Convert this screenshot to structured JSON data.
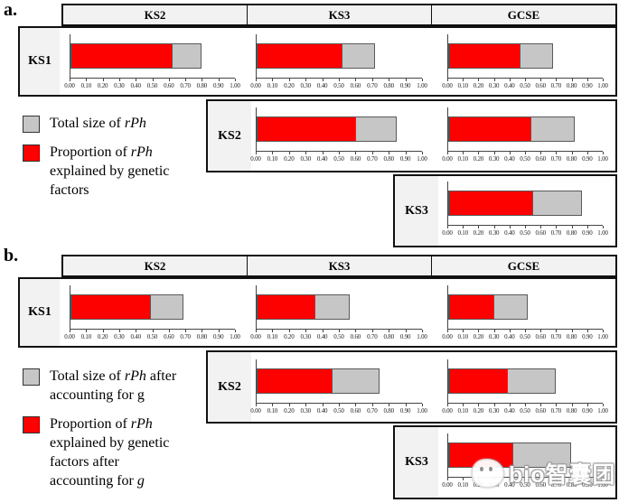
{
  "axis": {
    "tick_labels": [
      "0.00",
      "0.10",
      "0.20",
      "0.30",
      "0.40",
      "0.50",
      "0.60",
      "0.70",
      "0.80",
      "0.90",
      "1.00"
    ],
    "min": 0,
    "max": 1
  },
  "colors": {
    "red": "#fc0100",
    "gray": "#c6c6c6",
    "panel_bg": "#f2f2f2",
    "border": "#111111"
  },
  "panel_a": {
    "label": "a.",
    "columns": [
      "KS2",
      "KS3",
      "GCSE"
    ],
    "row_labels": [
      "KS1",
      "KS2",
      "KS3"
    ],
    "legend": {
      "items": [
        {
          "color": "#c6c6c6",
          "swatch_name": "gray-total-swatch",
          "lines": [
            "Total size of _rPh_"
          ]
        },
        {
          "color": "#fc0100",
          "swatch_name": "red-genetic-swatch",
          "lines": [
            "Proportion of _rPh_",
            "explained by genetic",
            "factors"
          ]
        }
      ]
    }
  },
  "panel_b": {
    "label": "b.",
    "columns": [
      "KS2",
      "KS3",
      "GCSE"
    ],
    "row_labels": [
      "KS1",
      "KS2",
      "KS3"
    ],
    "legend": {
      "items": [
        {
          "color": "#c6c6c6",
          "swatch_name": "gray-total-swatch",
          "lines": [
            "Total size of _rPh_ after",
            "accounting for g"
          ]
        },
        {
          "color": "#fc0100",
          "swatch_name": "red-genetic-swatch",
          "lines": [
            "Proportion of _rPh_",
            "explained by genetic",
            "factors after",
            "accounting for _g_"
          ]
        }
      ]
    }
  },
  "watermark": {
    "text": "bio智囊团"
  },
  "chart_data": [
    {
      "type": "bar",
      "panel": "a",
      "orientation": "horizontal",
      "stacked": true,
      "xlim": [
        0,
        1
      ],
      "x_ticks": [
        0,
        0.1,
        0.2,
        0.3,
        0.4,
        0.5,
        0.6,
        0.7,
        0.8,
        0.9,
        1.0
      ],
      "legend": [
        {
          "color": "#c6c6c6",
          "label": "Total size of rPh"
        },
        {
          "color": "#fc0100",
          "label": "Proportion of rPh explained by genetic factors"
        }
      ],
      "rows": [
        {
          "row": "KS1",
          "bars": [
            {
              "column": "KS2",
              "proportion_explained_by_genetic_factors": 0.61,
              "total_size_rph": 0.78
            },
            {
              "column": "KS3",
              "proportion_explained_by_genetic_factors": 0.51,
              "total_size_rph": 0.7
            },
            {
              "column": "GCSE",
              "proportion_explained_by_genetic_factors": 0.46,
              "total_size_rph": 0.66
            }
          ]
        },
        {
          "row": "KS2",
          "bars": [
            {
              "column": "KS3",
              "proportion_explained_by_genetic_factors": 0.59,
              "total_size_rph": 0.83
            },
            {
              "column": "GCSE",
              "proportion_explained_by_genetic_factors": 0.53,
              "total_size_rph": 0.8
            }
          ]
        },
        {
          "row": "KS3",
          "bars": [
            {
              "column": "GCSE",
              "proportion_explained_by_genetic_factors": 0.54,
              "total_size_rph": 0.85
            }
          ]
        }
      ]
    },
    {
      "type": "bar",
      "panel": "b",
      "orientation": "horizontal",
      "stacked": true,
      "xlim": [
        0,
        1
      ],
      "x_ticks": [
        0,
        0.1,
        0.2,
        0.3,
        0.4,
        0.5,
        0.6,
        0.7,
        0.8,
        0.9,
        1.0
      ],
      "legend": [
        {
          "color": "#c6c6c6",
          "label": "Total size of rPh after accounting for g"
        },
        {
          "color": "#fc0100",
          "label": "Proportion of rPh explained by genetic factors after accounting for g"
        }
      ],
      "rows": [
        {
          "row": "KS1",
          "bars": [
            {
              "column": "KS2",
              "proportion_explained_by_genetic_factors": 0.48,
              "total_size_rph": 0.67
            },
            {
              "column": "KS3",
              "proportion_explained_by_genetic_factors": 0.35,
              "total_size_rph": 0.55
            },
            {
              "column": "GCSE",
              "proportion_explained_by_genetic_factors": 0.29,
              "total_size_rph": 0.5
            }
          ]
        },
        {
          "row": "KS2",
          "bars": [
            {
              "column": "KS3",
              "proportion_explained_by_genetic_factors": 0.45,
              "total_size_rph": 0.73
            },
            {
              "column": "GCSE",
              "proportion_explained_by_genetic_factors": 0.38,
              "total_size_rph": 0.68
            }
          ]
        },
        {
          "row": "KS3",
          "bars": [
            {
              "column": "GCSE",
              "proportion_explained_by_genetic_factors": 0.41,
              "total_size_rph": 0.78
            }
          ]
        }
      ]
    }
  ]
}
